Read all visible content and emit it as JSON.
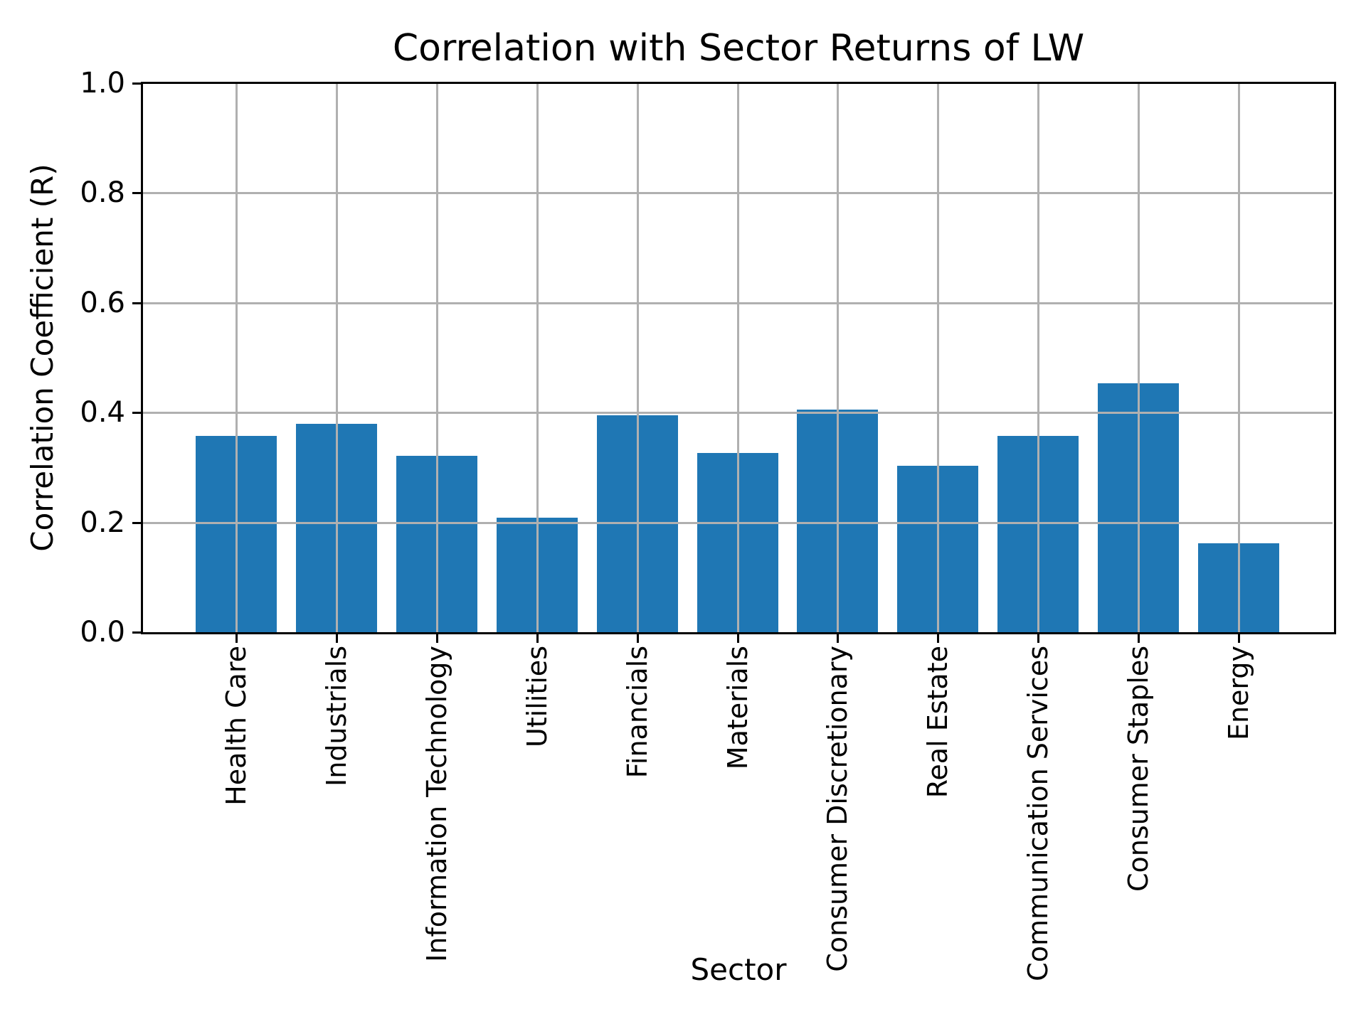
{
  "chart_data": {
    "type": "bar",
    "title": "Correlation with Sector Returns of LW",
    "xlabel": "Sector",
    "ylabel": "Correlation Coefficient (R)",
    "categories": [
      "Health Care",
      "Industrials",
      "Information Technology",
      "Utilities",
      "Financials",
      "Materials",
      "Consumer Discretionary",
      "Real Estate",
      "Communication Services",
      "Consumer Staples",
      "Energy"
    ],
    "values": [
      0.357,
      0.379,
      0.321,
      0.208,
      0.395,
      0.327,
      0.406,
      0.303,
      0.358,
      0.453,
      0.162
    ],
    "ylim": [
      0.0,
      1.0
    ],
    "ytick_labels": [
      "0.0",
      "0.2",
      "0.4",
      "0.6",
      "0.8",
      "1.0"
    ],
    "ytick_values": [
      0.0,
      0.2,
      0.4,
      0.6,
      0.8,
      1.0
    ],
    "grid": true,
    "grid_over_bars": true,
    "legend_position": "none",
    "xtick_rotation": 90,
    "bar_color": "#1f77b4",
    "grid_color": "#b0b0b0",
    "axis_color": "#000000",
    "background_color": "#ffffff"
  }
}
